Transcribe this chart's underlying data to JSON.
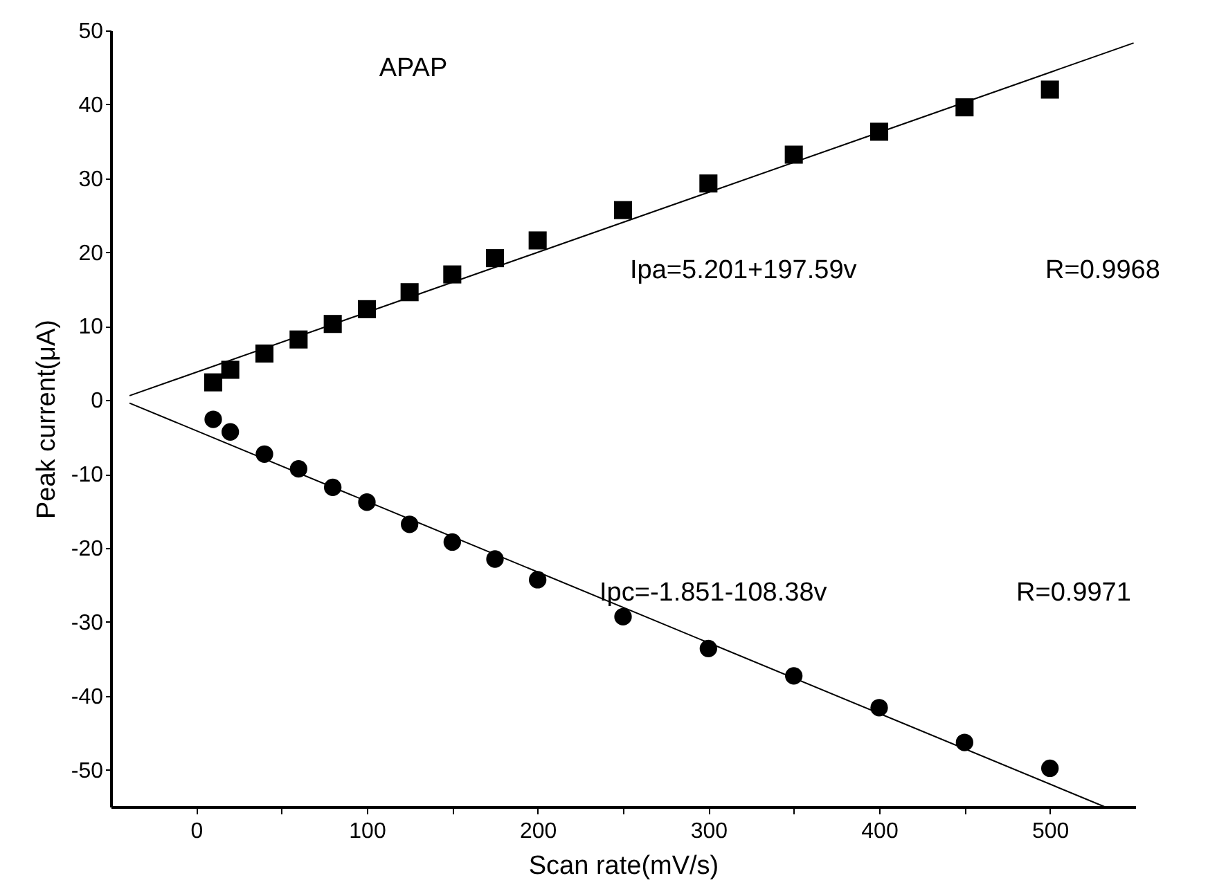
{
  "chart_data": {
    "type": "scatter",
    "title": "APAP",
    "xlabel": "Scan rate(mV/s)",
    "ylabel": "Peak current(μA)",
    "xlim": [
      -50,
      550
    ],
    "ylim": [
      -55,
      50
    ],
    "xticks": [
      0,
      {
        "value": 50,
        "label": null
      },
      100,
      {
        "value": 150,
        "label": null
      },
      200,
      {
        "value": 250,
        "label": null
      },
      300,
      {
        "value": 350,
        "label": null
      },
      400,
      {
        "value": 450,
        "label": null
      },
      500
    ],
    "yticks": [
      -50,
      -40,
      -30,
      -20,
      -10,
      0,
      10,
      20,
      30,
      40,
      50
    ],
    "grid": false,
    "series": [
      {
        "marker": "square",
        "color": "#000000",
        "x": [
          10,
          20,
          40,
          60,
          80,
          100,
          125,
          150,
          175,
          200,
          250,
          300,
          350,
          400,
          450,
          500
        ],
        "values": [
          2.4,
          4.1,
          6.3,
          8.2,
          10.3,
          12.3,
          14.6,
          17.0,
          19.2,
          21.6,
          25.7,
          29.3,
          33.2,
          36.3,
          39.6,
          42.0
        ]
      },
      {
        "marker": "circle",
        "color": "#000000",
        "x": [
          10,
          20,
          40,
          60,
          80,
          100,
          125,
          150,
          175,
          200,
          250,
          300,
          350,
          400,
          450,
          500
        ],
        "values": [
          -2.6,
          -4.3,
          -7.3,
          -9.3,
          -11.8,
          -13.8,
          -16.8,
          -19.2,
          -21.5,
          -24.3,
          -29.3,
          -33.6,
          -37.3,
          -41.6,
          -46.3,
          -49.8
        ]
      },
      {
        "type": "line",
        "line_style": "solid",
        "color": "#000000",
        "x": [
          -39,
          549
        ],
        "values": [
          0.6,
          48.3
        ]
      },
      {
        "type": "line",
        "line_style": "solid",
        "color": "#000000",
        "x": [
          -39,
          532
        ],
        "values": [
          -0.4,
          -55
        ]
      }
    ],
    "annotations": [
      "Ipa=5.201+197.59v",
      "R=0.9968",
      "Ipc=-1.851-108.38v",
      "R=0.9971"
    ]
  }
}
